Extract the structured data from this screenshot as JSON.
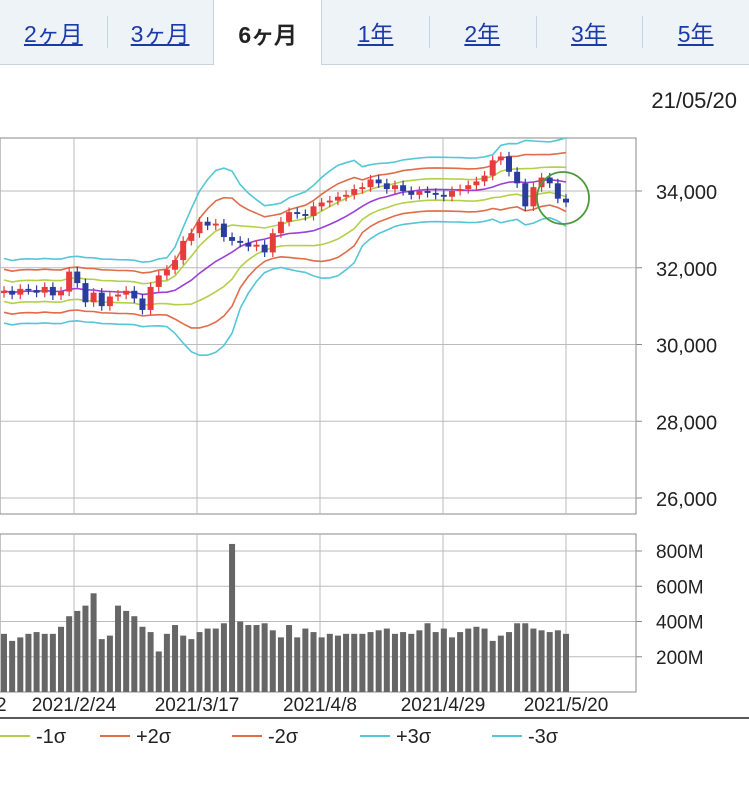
{
  "tabs": [
    {
      "label": "2ヶ月",
      "active": false
    },
    {
      "label": "3ヶ月",
      "active": false
    },
    {
      "label": "6ヶ月",
      "active": true
    },
    {
      "label": "1年",
      "active": false
    },
    {
      "label": "2年",
      "active": false
    },
    {
      "label": "3年",
      "active": false
    },
    {
      "label": "5年",
      "active": false
    }
  ],
  "date_label": "21/05/20",
  "chart_data": {
    "type": "candlestick",
    "price_ticks": [
      "34,000",
      "32,000",
      "30,000",
      "28,000",
      "26,000"
    ],
    "price_tick_values": [
      34000,
      32000,
      30000,
      28000,
      26000
    ],
    "volume_ticks": [
      "800M",
      "600M",
      "400M",
      "200M"
    ],
    "volume_tick_values": [
      800,
      600,
      400,
      200
    ],
    "volume_unit": "M",
    "x_tick_labels": [
      "2",
      "2021/2/24",
      "2021/3/17",
      "2021/4/8",
      "2021/4/29",
      "2021/5/20"
    ],
    "legend": [
      "-1σ",
      "+2σ",
      "-2σ",
      "+3σ",
      "-3σ"
    ],
    "colors": {
      "up": "#e53c3c",
      "down": "#2a3d9e",
      "ma": "#9b3fd6",
      "sigma1": "#b3d04a",
      "sigma2": "#e06c4a",
      "sigma3": "#55c6d6",
      "volume": "#666666",
      "highlight": "#4a9a3a"
    },
    "close": [
      31400,
      31300,
      31450,
      31420,
      31350,
      31500,
      31280,
      31380,
      31900,
      31600,
      31100,
      31350,
      31000,
      31250,
      31300,
      31400,
      31200,
      30900,
      31500,
      31800,
      31950,
      32200,
      32700,
      32900,
      33200,
      33100,
      33150,
      32800,
      32700,
      32650,
      32550,
      32600,
      32400,
      32900,
      33200,
      33450,
      33400,
      33350,
      33600,
      33700,
      33750,
      33850,
      33900,
      34050,
      34100,
      34300,
      34200,
      34050,
      34150,
      34000,
      33900,
      34000,
      33950,
      33900,
      33850,
      34000,
      34050,
      34150,
      34250,
      34400,
      34800,
      34900,
      34500,
      34200,
      33600,
      34100,
      34350,
      34200,
      33800,
      33700
    ],
    "volume": [
      330,
      290,
      310,
      330,
      340,
      330,
      330,
      370,
      430,
      460,
      490,
      560,
      300,
      320,
      490,
      460,
      430,
      370,
      340,
      230,
      330,
      380,
      320,
      300,
      340,
      360,
      360,
      390,
      840,
      400,
      380,
      380,
      390,
      350,
      310,
      380,
      310,
      360,
      340,
      310,
      330,
      320,
      330,
      330,
      330,
      340,
      350,
      360,
      330,
      340,
      330,
      350,
      390,
      340,
      360,
      310,
      340,
      360,
      370,
      360,
      290,
      320,
      340,
      390,
      390,
      360,
      350,
      340,
      350,
      330
    ]
  }
}
